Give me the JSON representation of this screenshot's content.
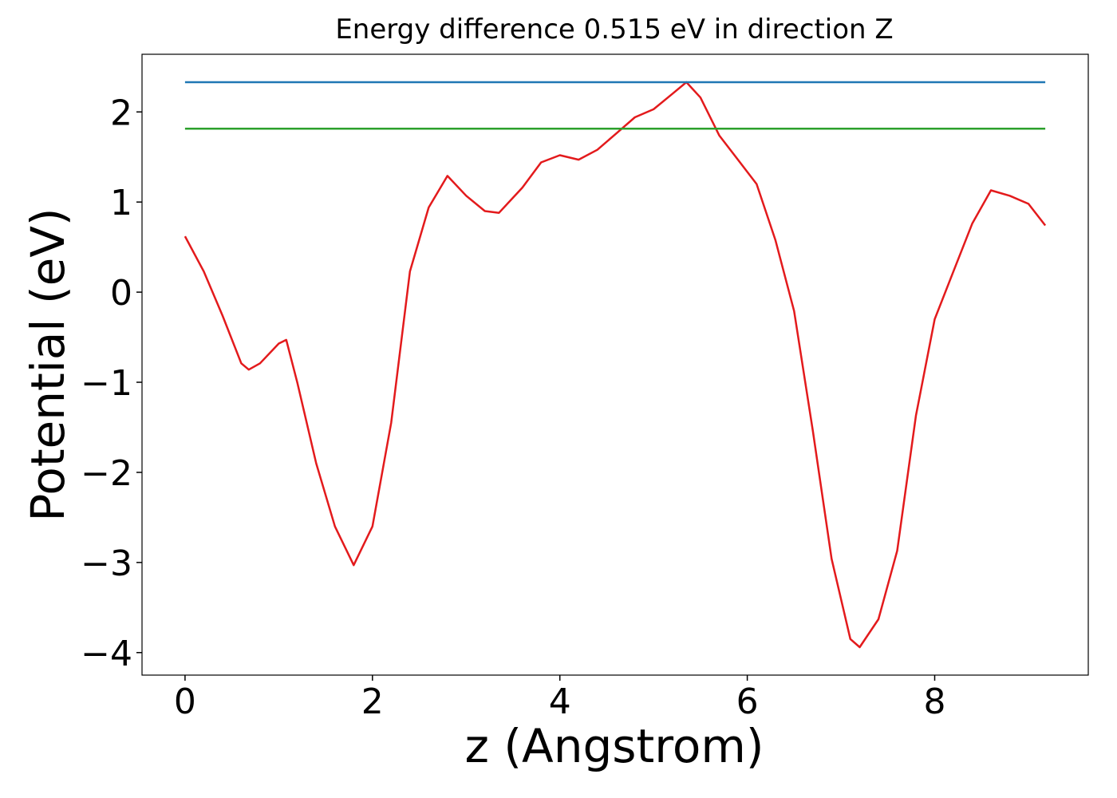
{
  "chart_data": {
    "type": "line",
    "title": "Energy difference 0.515 eV in direction Z",
    "x_label": "z (Angstrom)",
    "y_label": "Potential (eV)",
    "xlim": [
      -0.459,
      9.639
    ],
    "ylim": [
      -4.25,
      2.64
    ],
    "xticks": [
      0,
      2,
      4,
      6,
      8
    ],
    "yticks": [
      {
        "value": -4,
        "label": "−4"
      },
      {
        "value": -3,
        "label": "−3"
      },
      {
        "value": -2,
        "label": "−2"
      },
      {
        "value": -1,
        "label": "−1"
      },
      0,
      1,
      2
    ],
    "series": [
      {
        "color": "#e31a1c",
        "x": [
          0,
          0.2,
          0.4,
          0.6,
          0.68,
          0.8,
          1.0,
          1.08,
          1.2,
          1.4,
          1.6,
          1.8,
          2.0,
          2.2,
          2.4,
          2.6,
          2.8,
          3.0,
          3.2,
          3.35,
          3.6,
          3.8,
          4.0,
          4.2,
          4.4,
          4.6,
          4.8,
          5.0,
          5.2,
          5.35,
          5.5,
          5.7,
          5.9,
          6.1,
          6.3,
          6.5,
          6.7,
          6.9,
          7.1,
          7.2,
          7.4,
          7.6,
          7.8,
          8.0,
          8.2,
          8.4,
          8.6,
          8.8,
          9.0,
          9.18
        ],
        "values": [
          0.62,
          0.23,
          -0.26,
          -0.79,
          -0.86,
          -0.79,
          -0.57,
          -0.53,
          -1.01,
          -1.9,
          -2.6,
          -3.03,
          -2.6,
          -1.45,
          0.23,
          0.94,
          1.29,
          1.07,
          0.9,
          0.88,
          1.16,
          1.44,
          1.52,
          1.47,
          1.58,
          1.76,
          1.94,
          2.03,
          2.2,
          2.33,
          2.16,
          1.74,
          1.47,
          1.2,
          0.58,
          -0.21,
          -1.54,
          -2.96,
          -3.85,
          -3.94,
          -3.63,
          -2.87,
          -1.37,
          -0.3,
          0.23,
          0.76,
          1.13,
          1.07,
          0.98,
          0.74
        ]
      },
      {
        "color": "#1f77b4",
        "x": [
          0,
          9.18
        ],
        "values": [
          2.33,
          2.33
        ]
      },
      {
        "color": "#2ca02c",
        "x": [
          0,
          9.18
        ],
        "values": [
          1.815,
          1.815
        ]
      }
    ]
  }
}
